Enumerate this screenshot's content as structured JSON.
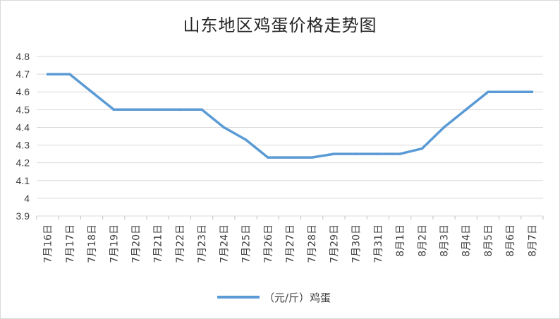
{
  "chart_data": {
    "type": "line",
    "title": "山东地区鸡蛋价格走势图",
    "categories": [
      "7月16日",
      "7月17日",
      "7月18日",
      "7月19日",
      "7月20日",
      "7月21日",
      "7月22日",
      "7月23日",
      "7月24日",
      "7月25日",
      "7月26日",
      "7月27日",
      "7月28日",
      "7月29日",
      "7月30日",
      "7月31日",
      "8月1日",
      "8月2日",
      "8月3日",
      "8月4日",
      "8月5日",
      "8月6日",
      "8月7日"
    ],
    "series": [
      {
        "name": "（元/斤）鸡蛋",
        "color": "#5b9bd5",
        "values": [
          4.7,
          4.7,
          4.6,
          4.5,
          4.5,
          4.5,
          4.5,
          4.5,
          4.4,
          4.33,
          4.23,
          4.23,
          4.23,
          4.25,
          4.25,
          4.25,
          4.25,
          4.28,
          4.4,
          4.5,
          4.6,
          4.6,
          4.6
        ]
      }
    ],
    "yticks": [
      "3.9",
      "4",
      "4.1",
      "4.2",
      "4.3",
      "4.4",
      "4.5",
      "4.6",
      "4.7",
      "4.8"
    ],
    "ylim": [
      3.9,
      4.8
    ],
    "grid": true,
    "legend": "bottom"
  }
}
